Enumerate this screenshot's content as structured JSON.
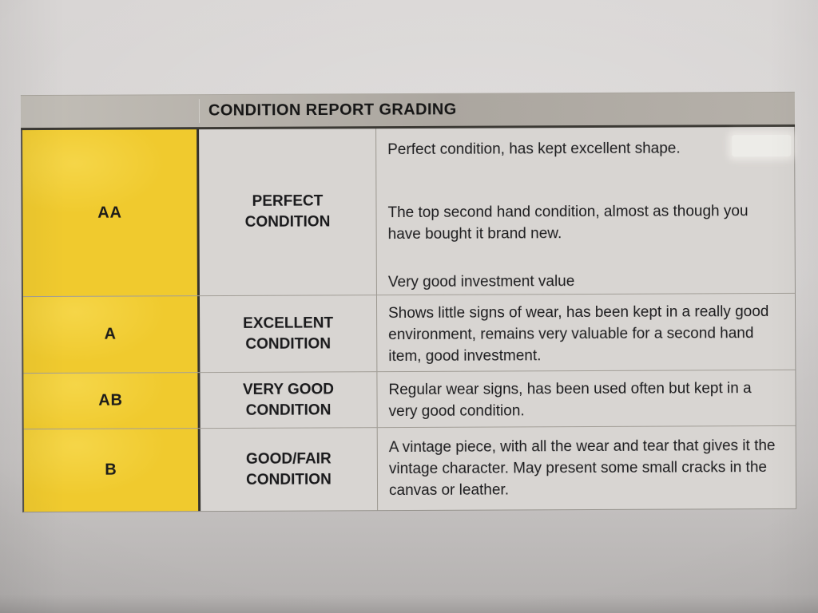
{
  "table": {
    "title": "CONDITION REPORT GRADING",
    "rows": [
      {
        "code": "AA",
        "label": "PERFECT CONDITION",
        "paragraphs": [
          "Perfect condition, has kept excellent shape.",
          "The top second hand condition, almost as though you have bought it brand new.",
          "Very good investment value"
        ]
      },
      {
        "code": "A",
        "label": "EXCELLENT CONDITION",
        "paragraphs": [
          "Shows little signs of wear, has been kept in a really good environment, remains very valuable for a second hand item, good investment."
        ]
      },
      {
        "code": "AB",
        "label": "VERY GOOD CONDITION",
        "paragraphs": [
          "Regular wear signs, has been used often but kept in a very good condition."
        ]
      },
      {
        "code": "B",
        "label": "GOOD/FAIR CONDITION",
        "paragraphs": [
          "A vintage piece, with all the wear and tear that gives it the vintage character. May present some small cracks in the canvas or leather."
        ]
      }
    ]
  },
  "colors": {
    "grade_yellow": "#f0ca2e",
    "header_gray": "#aea9a2",
    "paper_gray": "#d0cdcc",
    "text_black": "#1c1c1e"
  }
}
